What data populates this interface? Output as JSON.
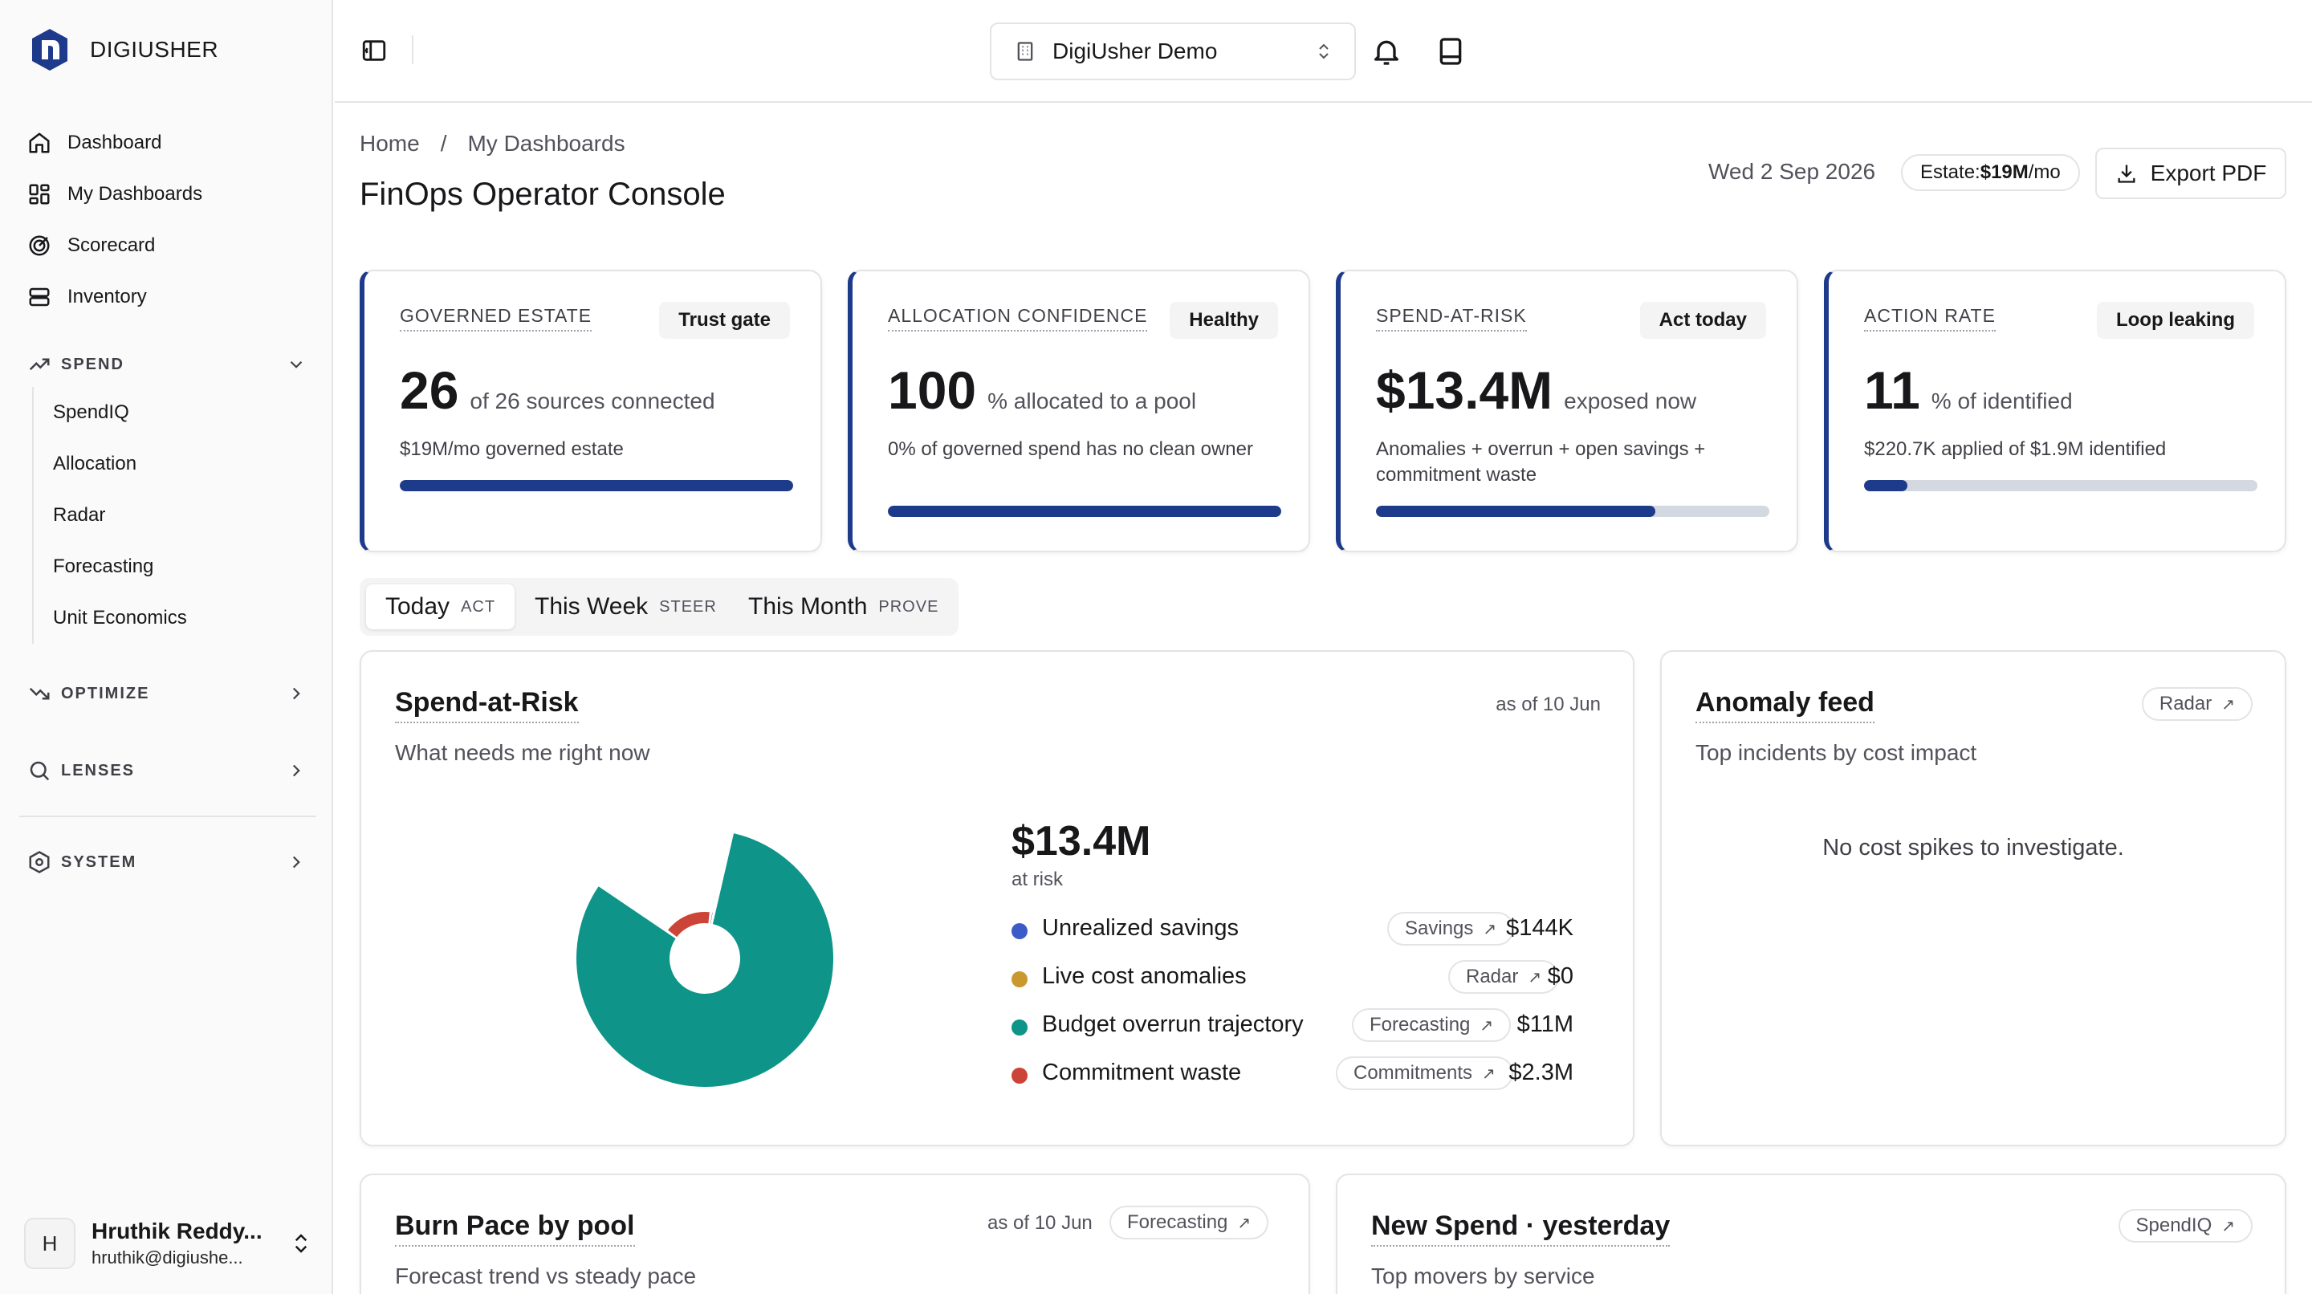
{
  "brand": {
    "name": "DIGIUSHER"
  },
  "nav": {
    "primary": [
      "Dashboard",
      "My Dashboards",
      "Scorecard",
      "Inventory"
    ],
    "spend_section": "SPEND",
    "spend_items": [
      "SpendIQ",
      "Allocation",
      "Radar",
      "Forecasting",
      "Unit Economics"
    ],
    "optimize_section": "OPTIMIZE",
    "lenses_section": "LENSES",
    "system_section": "SYSTEM"
  },
  "user": {
    "initial": "H",
    "name": "Hruthik Reddy...",
    "email": "hruthik@digiushe..."
  },
  "topbar": {
    "org": "DigiUsher Demo"
  },
  "header": {
    "breadcrumb": [
      "Home",
      "My Dashboards"
    ],
    "breadcrumb_sep": "/",
    "title": "FinOps Operator Console",
    "date": "Wed 2 Sep 2026",
    "estate_label": "Estate:",
    "estate_value": "$19M",
    "estate_suffix": "/mo",
    "export_label": "Export PDF"
  },
  "kpis": [
    {
      "label": "GOVERNED ESTATE",
      "badge": "Trust gate",
      "value": "26",
      "unit": "of 26 sources connected",
      "desc": "$19M/mo governed estate",
      "progress": 1.0
    },
    {
      "label": "ALLOCATION CONFIDENCE",
      "badge": "Healthy",
      "value": "100",
      "unit": "% allocated to a pool",
      "desc": "0% of governed spend has no clean owner",
      "progress": 1.0
    },
    {
      "label": "SPEND-AT-RISK",
      "badge": "Act today",
      "value": "$13.4M",
      "unit": "exposed now",
      "desc": "Anomalies + overrun + open savings + commitment waste",
      "progress": 0.71
    },
    {
      "label": "ACTION RATE",
      "badge": "Loop leaking",
      "value": "11",
      "unit": "% of identified",
      "desc": "$220.7K applied of $1.9M identified",
      "progress": 0.11
    }
  ],
  "tabs": [
    {
      "label": "Today",
      "sub": "ACT"
    },
    {
      "label": "This Week",
      "sub": "STEER"
    },
    {
      "label": "This Month",
      "sub": "PROVE"
    }
  ],
  "spend_at_risk": {
    "title": "Spend-at-Risk",
    "subtitle": "What needs me right now",
    "as_of": "as of 10 Jun",
    "total": "$13.4M",
    "total_caption": "at risk",
    "rows": [
      {
        "label": "Unrealized savings",
        "link": "Savings",
        "value": "$144K",
        "color": "#3b5bc7"
      },
      {
        "label": "Live cost anomalies",
        "link": "Radar",
        "value": "$0",
        "color": "#c9982e"
      },
      {
        "label": "Budget overrun trajectory",
        "link": "Forecasting",
        "value": "$11M",
        "color": "#0e9488"
      },
      {
        "label": "Commitment waste",
        "link": "Commitments",
        "value": "$2.3M",
        "color": "#cc4437"
      }
    ]
  },
  "chart_data": {
    "type": "pie",
    "categories": [
      "Unrealized savings",
      "Live cost anomalies",
      "Budget overrun trajectory",
      "Commitment waste"
    ],
    "values": [
      0.144,
      0,
      11,
      2.3
    ]
  },
  "anomaly": {
    "title": "Anomaly feed",
    "subtitle": "Top incidents by cost impact",
    "link": "Radar",
    "empty": "No cost spikes to investigate."
  },
  "burn": {
    "title": "Burn Pace by pool",
    "subtitle": "Forecast trend vs steady pace",
    "as_of": "as of 10 Jun",
    "link": "Forecasting"
  },
  "new_spend": {
    "title": "New Spend · yesterday",
    "subtitle": "Top movers by service",
    "link": "SpendIQ"
  },
  "arrow_glyph": "↗"
}
